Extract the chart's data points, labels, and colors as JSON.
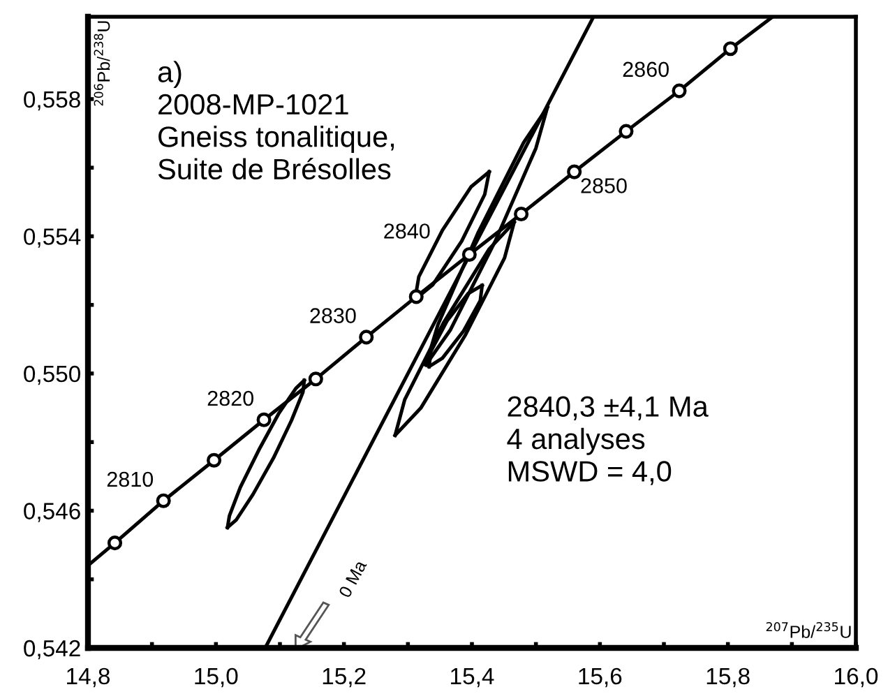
{
  "chart_data": {
    "type": "line",
    "xlabel": "$^{207}$Pb/$^{235}$U",
    "ylabel": "$^{206}$Pb/$^{238}$U",
    "xlim": [
      14.8,
      16.0
    ],
    "ylim": [
      0.542,
      0.5604
    ],
    "xticks": [
      {
        "value": 14.8,
        "label": "14,8"
      },
      {
        "value": 14.9,
        "label": null
      },
      {
        "value": 15.0,
        "label": "15,0"
      },
      {
        "value": 15.1,
        "label": null
      },
      {
        "value": 15.2,
        "label": "15,2"
      },
      {
        "value": 15.3,
        "label": null
      },
      {
        "value": 15.4,
        "label": "15,4"
      },
      {
        "value": 15.5,
        "label": null
      },
      {
        "value": 15.6,
        "label": "15,6"
      },
      {
        "value": 15.7,
        "label": null
      },
      {
        "value": 15.8,
        "label": "15,8"
      },
      {
        "value": 15.9,
        "label": null
      },
      {
        "value": 16.0,
        "label": "16,0"
      }
    ],
    "yticks": [
      {
        "value": 0.542,
        "label": "0,542"
      },
      {
        "value": 0.544,
        "label": null
      },
      {
        "value": 0.546,
        "label": "0,546"
      },
      {
        "value": 0.548,
        "label": null
      },
      {
        "value": 0.55,
        "label": "0,550"
      },
      {
        "value": 0.552,
        "label": null
      },
      {
        "value": 0.554,
        "label": "0,554"
      },
      {
        "value": 0.556,
        "label": null
      },
      {
        "value": 0.558,
        "label": "0,558"
      }
    ],
    "grid": false,
    "line_style": "solid",
    "series": [
      {
        "type": "line",
        "color": "#000000",
        "x": [
          14.8,
          14.842,
          14.918,
          14.997,
          15.075,
          15.156,
          15.235,
          15.313,
          15.396,
          15.477,
          15.56,
          15.641,
          15.724,
          15.804,
          15.87
        ],
        "values": [
          0.5444,
          0.54506,
          0.54629,
          0.54747,
          0.54865,
          0.54984,
          0.55106,
          0.55224,
          0.55347,
          0.55465,
          0.55588,
          0.55706,
          0.55824,
          0.55947,
          0.5604
        ]
      },
      {
        "type": "scatter",
        "marker": "circle",
        "color": "#000000",
        "x": [
          14.842,
          14.918,
          14.997,
          15.075,
          15.156,
          15.235,
          15.313,
          15.396,
          15.477,
          15.56,
          15.641,
          15.724,
          15.804
        ],
        "values": [
          0.54506,
          0.54629,
          0.54747,
          0.54865,
          0.54984,
          0.55106,
          0.55224,
          0.55347,
          0.55465,
          0.55588,
          0.55706,
          0.55824,
          0.55947
        ]
      },
      {
        "type": "line",
        "color": "#000000",
        "x": [
          15.077,
          15.59
        ],
        "values": [
          0.542,
          0.5604
        ]
      },
      {
        "type": "line",
        "color": "#000000",
        "x": [
          15.018,
          15.032,
          15.058,
          15.09,
          15.118,
          15.136,
          15.138
        ],
        "values": [
          0.54551,
          0.54574,
          0.54648,
          0.54754,
          0.54863,
          0.54946,
          0.5498
        ]
      },
      {
        "type": "line",
        "color": "#000000",
        "x": [
          15.018,
          15.021,
          15.038,
          15.067,
          15.098,
          15.125,
          15.138
        ],
        "values": [
          0.54551,
          0.54585,
          0.54668,
          0.54777,
          0.54883,
          0.54957,
          0.5498
        ]
      },
      {
        "type": "line",
        "color": "#000000",
        "x": [
          15.311,
          15.339,
          15.384,
          15.42,
          15.427
        ],
        "values": [
          0.55216,
          0.55259,
          0.55386,
          0.55522,
          0.55588
        ]
      },
      {
        "type": "line",
        "color": "#000000",
        "x": [
          15.311,
          15.317,
          15.354,
          15.399,
          15.427
        ],
        "values": [
          0.55216,
          0.55282,
          0.55418,
          0.55545,
          0.55588
        ]
      },
      {
        "type": "line",
        "color": "#000000",
        "x": [
          15.328,
          15.366,
          15.437,
          15.5,
          15.518
        ],
        "values": [
          0.55025,
          0.55126,
          0.55388,
          0.55657,
          0.55776
        ]
      },
      {
        "type": "line",
        "color": "#000000",
        "x": [
          15.328,
          15.347,
          15.41,
          15.481,
          15.518
        ],
        "values": [
          0.55025,
          0.55143,
          0.55412,
          0.55674,
          0.55776
        ]
      },
      {
        "type": "line",
        "color": "#000000",
        "x": [
          15.28,
          15.32,
          15.39,
          15.451,
          15.466
        ],
        "values": [
          0.5482,
          0.54899,
          0.55113,
          0.55337,
          0.55441
        ]
      },
      {
        "type": "line",
        "color": "#000000",
        "x": [
          15.28,
          15.295,
          15.356,
          15.427,
          15.466
        ],
        "values": [
          0.5482,
          0.54924,
          0.55149,
          0.55363,
          0.55441
        ]
      },
      {
        "type": "line",
        "color": "#000000",
        "x": [
          15.333,
          15.354,
          15.387,
          15.413,
          15.416
        ],
        "values": [
          0.5502,
          0.55045,
          0.55124,
          0.55212,
          0.55257
        ]
      },
      {
        "type": "line",
        "color": "#000000",
        "x": [
          15.333,
          15.336,
          15.361,
          15.394,
          15.416
        ],
        "values": [
          0.5502,
          0.55065,
          0.55153,
          0.55233,
          0.55257
        ]
      }
    ],
    "annotations": [
      "a)\n2008-MP-1021\nGneiss tonalitique,\nSuite de Brésolles",
      "2840,3 ±4,1 Ma\n4 analyses\nMSWD = 4,0",
      "0 Ma",
      {
        "text": "2810",
        "x": 14.918,
        "y": 0.54629
      },
      {
        "text": "2820",
        "x": 15.075,
        "y": 0.54865
      },
      {
        "text": "2830",
        "x": 15.235,
        "y": 0.55106
      },
      {
        "text": "2840",
        "x": 15.396,
        "y": 0.55347
      },
      {
        "text": "2850",
        "x": 15.56,
        "y": 0.55588
      },
      {
        "text": "2860",
        "x": 15.724,
        "y": 0.55824
      }
    ]
  }
}
